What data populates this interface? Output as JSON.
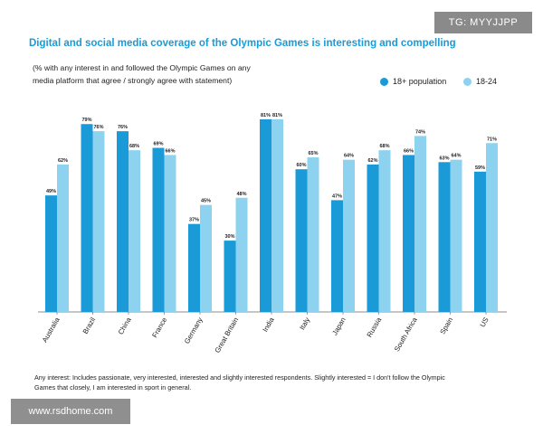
{
  "watermark_top": "TG: MYYJJPP",
  "watermark_bottom": "www.rsdhome.com",
  "chart_data": {
    "type": "bar",
    "title": "Digital and social media coverage of the Olympic Games is interesting and compelling",
    "subtitle_line1": "(% with any interest in and followed the Olympic Games on any",
    "subtitle_line2": "media platform that agree / strongly agree with statement)",
    "categories": [
      "Australia",
      "Brazil",
      "China",
      "France",
      "Germany",
      "Great Britain",
      "India",
      "Italy",
      "Japan",
      "Russia",
      "South Africa",
      "Spain",
      "US"
    ],
    "series": [
      {
        "name": "18+ population",
        "color": "#1a9bd7",
        "values": [
          49,
          79,
          76,
          69,
          37,
          30,
          81,
          60,
          47,
          62,
          66,
          63,
          59
        ]
      },
      {
        "name": "18-24",
        "color": "#8dd3ef",
        "values": [
          62,
          76,
          68,
          66,
          45,
          48,
          81,
          65,
          64,
          68,
          74,
          64,
          71
        ]
      }
    ],
    "value_suffix": "%",
    "ylim": [
      0,
      100
    ],
    "legend_position": "top-right",
    "grid": false,
    "footnote_line1": "Any interest: Includes passionate, very interested, interested and slightly interested respondents. Slightly interested = I don't follow the Olympic",
    "footnote_line2": "Games that closely, I am interested in sport in general."
  }
}
